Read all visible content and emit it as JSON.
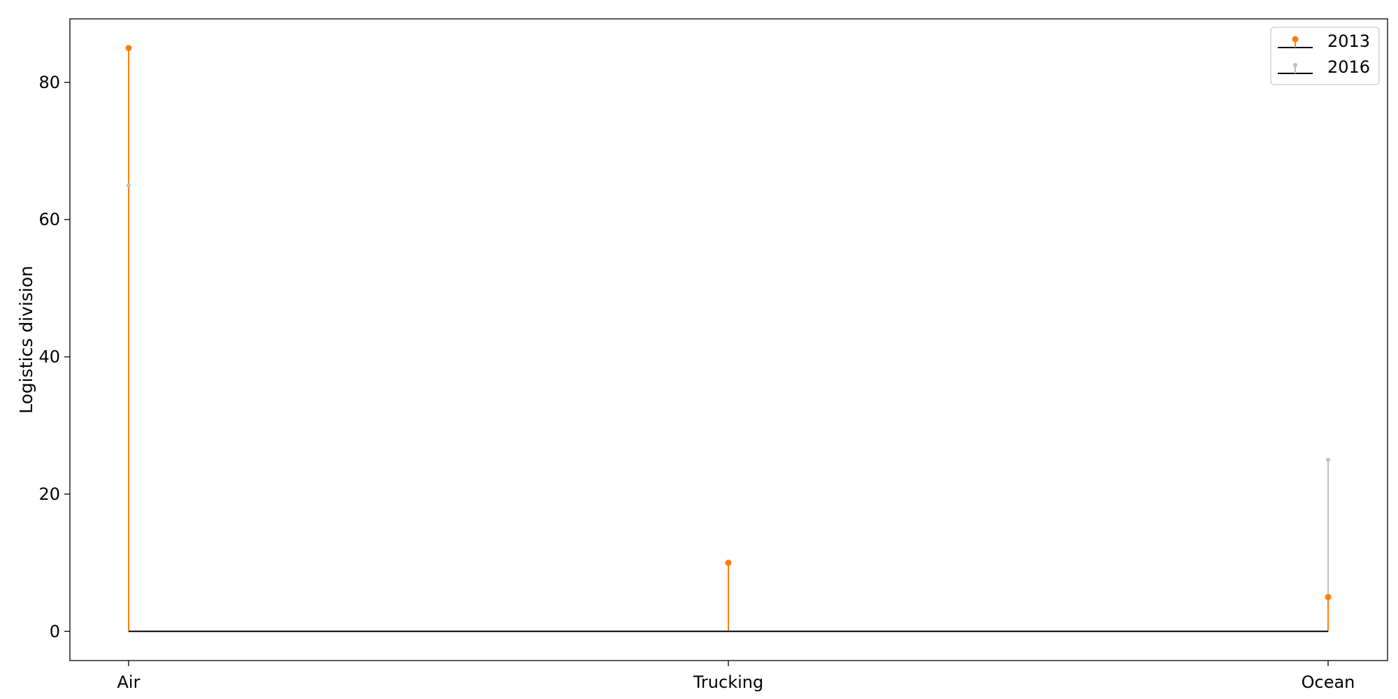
{
  "chart_data": {
    "type": "stem",
    "title": "",
    "xlabel": "",
    "ylabel": "Logistics division",
    "categories": [
      "Air",
      "Trucking",
      "Ocean"
    ],
    "series": [
      {
        "name": "2013",
        "values": [
          85,
          10,
          5
        ],
        "color": "#ff7f0e"
      },
      {
        "name": "2016",
        "values": [
          65,
          10,
          25
        ],
        "color": "#bfbfbf"
      }
    ],
    "baseline": 0,
    "ylim": [
      -4.25,
      89.25
    ],
    "yticks": [
      0,
      20,
      40,
      60,
      80
    ],
    "grid": false,
    "legend": {
      "position": "top-right"
    }
  }
}
